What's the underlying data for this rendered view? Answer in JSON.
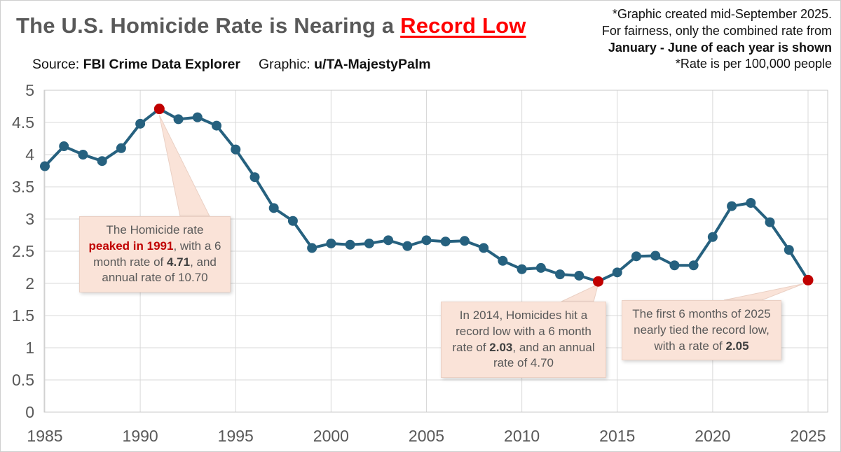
{
  "header": {
    "title_prefix": "The U.S. Homicide Rate is Nearing a ",
    "title_highlight": "Record Low",
    "source_label": "Source:",
    "source_value": "FBI Crime Data Explorer",
    "graphic_label": "Graphic:",
    "graphic_value": "u/TA-MajestyPalm",
    "note_line1": "*Graphic created mid-September 2025.",
    "note_line2": "For fairness, only the combined rate from",
    "note_line3": "January - June of each year is shown",
    "note_line4": "*Rate is per 100,000 people"
  },
  "colors": {
    "title_gray": "#595959",
    "title_red": "#FF0000",
    "line_blue": "#26617F",
    "highlight_red": "#C00000",
    "grid_gray": "#D9D9D9",
    "callout_bg": "#FAE3D8",
    "callout_border": "#EAD0C4",
    "axis_text": "#595959"
  },
  "chart_data": {
    "type": "line",
    "title": "U.S. Homicide Rate, January - June combined, per 100,000 people",
    "xlabel": "",
    "ylabel": "",
    "x": [
      1985,
      1986,
      1987,
      1988,
      1989,
      1990,
      1991,
      1992,
      1993,
      1994,
      1995,
      1996,
      1997,
      1998,
      1999,
      2000,
      2001,
      2002,
      2003,
      2004,
      2005,
      2006,
      2007,
      2008,
      2009,
      2010,
      2011,
      2012,
      2013,
      2014,
      2015,
      2016,
      2017,
      2018,
      2019,
      2020,
      2021,
      2022,
      2023,
      2024,
      2025
    ],
    "values": [
      3.82,
      4.13,
      4.0,
      3.9,
      4.1,
      4.48,
      4.71,
      4.55,
      4.58,
      4.45,
      4.08,
      3.65,
      3.17,
      2.97,
      2.55,
      2.62,
      2.6,
      2.62,
      2.67,
      2.58,
      2.67,
      2.65,
      2.66,
      2.55,
      2.35,
      2.22,
      2.24,
      2.14,
      2.12,
      2.03,
      2.17,
      2.42,
      2.43,
      2.28,
      2.28,
      2.72,
      3.2,
      3.25,
      2.95,
      2.52,
      2.05
    ],
    "highlight_years": [
      1991,
      2014,
      2025
    ],
    "highlight_values": {
      "1991": 4.71,
      "2014": 2.03,
      "2025": 2.05
    },
    "ylim": [
      0,
      5
    ],
    "ytick_step": 0.5,
    "xticks": [
      1985,
      1990,
      1995,
      2000,
      2005,
      2010,
      2015,
      2020,
      2025
    ],
    "grid": true,
    "legend": false,
    "line_color": "#26617F",
    "highlight_color": "#C00000",
    "grid_color": "#D9D9D9",
    "axis_text_color": "#595959"
  },
  "callouts": [
    {
      "name": "peak-1991",
      "segments": [
        {
          "text": "The Homicide rate "
        },
        {
          "text": "peaked in 1991"
        },
        {
          "text": ", with a 6 month rate of "
        },
        {
          "text": "4.71"
        },
        {
          "text": ", and annual rate of 10.70"
        }
      ]
    },
    {
      "name": "record-low-2014",
      "segments": [
        {
          "text": "In 2014, Homicides hit a record low with a 6 month rate of "
        },
        {
          "text": "2.03"
        },
        {
          "text": ", and an annual rate of 4.70"
        }
      ]
    },
    {
      "name": "near-record-2025",
      "segments": [
        {
          "text": "The first 6 months of 2025 nearly tied the record low, with a rate of "
        },
        {
          "text": "2.05"
        }
      ]
    }
  ]
}
